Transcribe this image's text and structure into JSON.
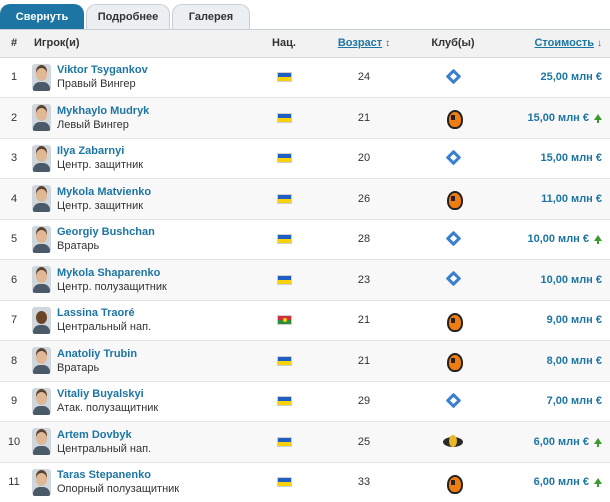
{
  "tabs": [
    {
      "label": "Свернуть",
      "active": true
    },
    {
      "label": "Подробнее",
      "active": false
    },
    {
      "label": "Галерея",
      "active": false
    }
  ],
  "columns": {
    "num": "#",
    "player": "Игрок(и)",
    "nat": "Нац.",
    "age": "Возраст",
    "age_sort_icon": "updown-arrow",
    "club": "Клуб(ы)",
    "value": "Стоимость",
    "value_sort_icon": "down-arrow"
  },
  "colors": {
    "accent": "#1d75a3",
    "trend_up": "#3a9c2d"
  },
  "rows": [
    {
      "num": "1",
      "name": "Viktor Tsygankov",
      "position": "Правый Вингер",
      "nationality": "ua",
      "age": "24",
      "club": "dynamo",
      "value": "25,00 млн €",
      "trend": "none"
    },
    {
      "num": "2",
      "name": "Mykhaylo Mudryk",
      "position": "Левый Вингер",
      "nationality": "ua",
      "age": "21",
      "club": "shakhtar",
      "value": "15,00 млн €",
      "trend": "up"
    },
    {
      "num": "3",
      "name": "Ilya Zabarnyi",
      "position": "Центр. защитник",
      "nationality": "ua",
      "age": "20",
      "club": "dynamo",
      "value": "15,00 млн €",
      "trend": "none"
    },
    {
      "num": "4",
      "name": "Mykola Matvienko",
      "position": "Центр. защитник",
      "nationality": "ua",
      "age": "26",
      "club": "shakhtar",
      "value": "11,00 млн €",
      "trend": "none"
    },
    {
      "num": "5",
      "name": "Georgiy Bushchan",
      "position": "Вратарь",
      "nationality": "ua",
      "age": "28",
      "club": "dynamo",
      "value": "10,00 млн €",
      "trend": "up"
    },
    {
      "num": "6",
      "name": "Mykola Shaparenko",
      "position": "Центр. полузащитник",
      "nationality": "ua",
      "age": "23",
      "club": "dynamo",
      "value": "10,00 млн €",
      "trend": "none"
    },
    {
      "num": "7",
      "name": "Lassina Traoré",
      "position": "Центральный нап.",
      "nationality": "bf",
      "age": "21",
      "club": "shakhtar",
      "value": "9,00 млн €",
      "trend": "none"
    },
    {
      "num": "8",
      "name": "Anatoliy Trubin",
      "position": "Вратарь",
      "nationality": "ua",
      "age": "21",
      "club": "shakhtar",
      "value": "8,00 млн €",
      "trend": "none"
    },
    {
      "num": "9",
      "name": "Vitaliy Buyalskyi",
      "position": "Атак. полузащитник",
      "nationality": "ua",
      "age": "29",
      "club": "dynamo",
      "value": "7,00 млн €",
      "trend": "none"
    },
    {
      "num": "10",
      "name": "Artem Dovbyk",
      "position": "Центральный нап.",
      "nationality": "ua",
      "age": "25",
      "club": "dnipro",
      "value": "6,00 млн €",
      "trend": "up"
    },
    {
      "num": "11",
      "name": "Taras Stepanenko",
      "position": "Опорный полузащитник",
      "nationality": "ua",
      "age": "33",
      "club": "shakhtar",
      "value": "6,00 млн €",
      "trend": "up"
    }
  ]
}
